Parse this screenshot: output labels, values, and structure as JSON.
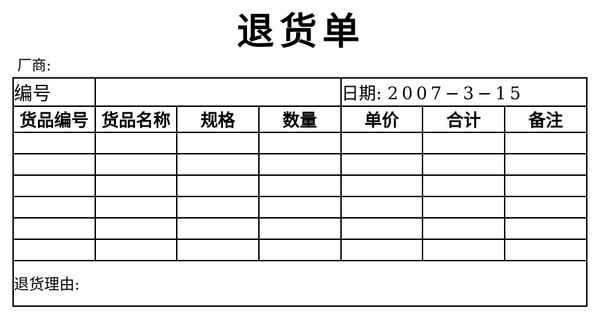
{
  "page": {
    "background": "#ffffff",
    "text_color": "#000000",
    "border_color": "#000000"
  },
  "title": "退货单",
  "vendor": {
    "label": "厂商:"
  },
  "info_row": {
    "number_label": "编号",
    "number_value": "",
    "date_label": "日期:",
    "date_value": "2007−3−15"
  },
  "table": {
    "headers": [
      "货品编号",
      "货品名称",
      "规格",
      "数量",
      "单价",
      "合计",
      "备注"
    ],
    "empty_row_count": 6,
    "columns": 7
  },
  "footer": {
    "reason_label": "退货理由:"
  }
}
